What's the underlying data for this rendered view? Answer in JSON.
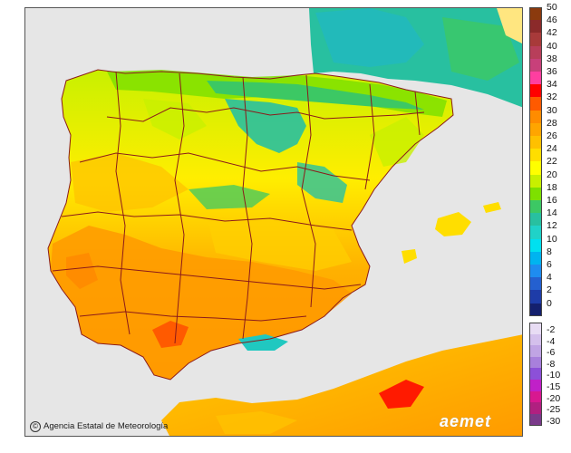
{
  "credit": {
    "symbol": "©",
    "text": "Agencia Estatal de Meteorología"
  },
  "logo": "aemet",
  "legend": {
    "positive": [
      {
        "label": "50",
        "color": "#8b3a0e"
      },
      {
        "label": "46",
        "color": "#8b2a2a"
      },
      {
        "label": "42",
        "color": "#a83a3a"
      },
      {
        "label": "40",
        "color": "#b83e5a"
      },
      {
        "label": "38",
        "color": "#c8407a"
      },
      {
        "label": "36",
        "color": "#ff3ea0"
      },
      {
        "label": "34",
        "color": "#ff0000"
      },
      {
        "label": "32",
        "color": "#ff5a00"
      },
      {
        "label": "30",
        "color": "#ff8c00"
      },
      {
        "label": "28",
        "color": "#ffa500"
      },
      {
        "label": "26",
        "color": "#ffc000"
      },
      {
        "label": "24",
        "color": "#ffde00"
      },
      {
        "label": "22",
        "color": "#ffff00"
      },
      {
        "label": "20",
        "color": "#c8f000"
      },
      {
        "label": "18",
        "color": "#7ee000"
      },
      {
        "label": "16",
        "color": "#3cc864"
      },
      {
        "label": "14",
        "color": "#28c0a0"
      },
      {
        "label": "12",
        "color": "#20d2c8"
      },
      {
        "label": "10",
        "color": "#00e0f0"
      },
      {
        "label": "8",
        "color": "#00b4f0"
      },
      {
        "label": "6",
        "color": "#1e8cf0"
      },
      {
        "label": "4",
        "color": "#2460d0"
      },
      {
        "label": "2",
        "color": "#1e3ca8"
      },
      {
        "label": "0",
        "color": "#14206e"
      }
    ],
    "negative": [
      {
        "label": "-2",
        "color": "#e8dcf4"
      },
      {
        "label": "-4",
        "color": "#d4c0ec"
      },
      {
        "label": "-6",
        "color": "#c0a4e4"
      },
      {
        "label": "-8",
        "color": "#a880dc"
      },
      {
        "label": "-10",
        "color": "#8c50d8"
      },
      {
        "label": "-15",
        "color": "#c020c8"
      },
      {
        "label": "-20",
        "color": "#d81890"
      },
      {
        "label": "-25",
        "color": "#b02080"
      },
      {
        "label": "-30",
        "color": "#7a3a8a"
      }
    ]
  }
}
